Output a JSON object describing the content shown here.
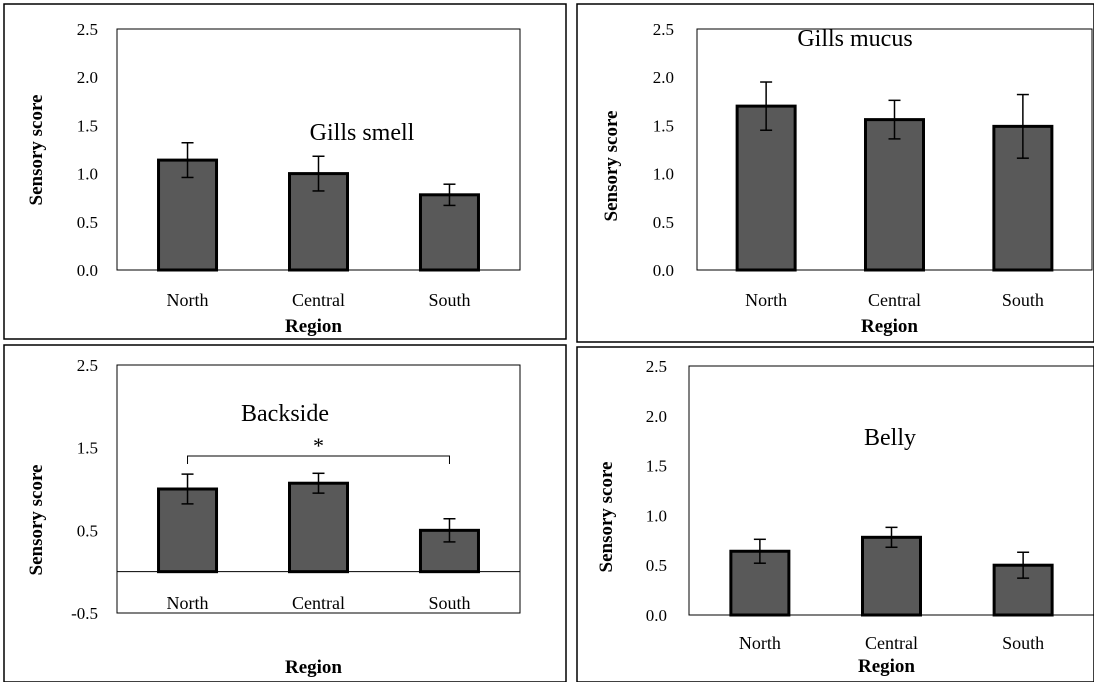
{
  "chart_data": [
    {
      "type": "bar",
      "title": "Gills smell",
      "xlabel": "Region",
      "ylabel": "Sensory score",
      "categories": [
        "North",
        "Central",
        "South"
      ],
      "values": [
        1.14,
        1.0,
        0.78
      ],
      "errors": [
        0.18,
        0.18,
        0.11
      ],
      "ylim": [
        0,
        2.5
      ],
      "yticks": [
        "0.0",
        "0.5",
        "1.0",
        "1.5",
        "2.0",
        "2.5"
      ],
      "bar_color": "#595959",
      "grid": false
    },
    {
      "type": "bar",
      "title": "Gills mucus",
      "xlabel": "Region",
      "ylabel": "Sensory score",
      "categories": [
        "North",
        "Central",
        "South"
      ],
      "values": [
        1.7,
        1.56,
        1.49
      ],
      "errors": [
        0.25,
        0.2,
        0.33
      ],
      "ylim": [
        0,
        2.5
      ],
      "yticks": [
        "0.0",
        "0.5",
        "1.0",
        "1.5",
        "2.0",
        "2.5"
      ],
      "bar_color": "#595959",
      "grid": false
    },
    {
      "type": "bar",
      "title": "Backside",
      "xlabel": "Region",
      "ylabel": "Sensory score",
      "categories": [
        "North",
        "Central",
        "South"
      ],
      "values": [
        1.0,
        1.07,
        0.5
      ],
      "errors": [
        0.18,
        0.12,
        0.14
      ],
      "ylim": [
        -0.5,
        2.5
      ],
      "yticks": [
        "-0.5",
        "0.5",
        "1.5",
        "2.5"
      ],
      "significance": {
        "from": "North",
        "to": "South",
        "label": "*"
      },
      "bar_color": "#595959",
      "grid": false
    },
    {
      "type": "bar",
      "title": "Belly",
      "xlabel": "Region",
      "ylabel": "Sensory score",
      "categories": [
        "North",
        "Central",
        "South"
      ],
      "values": [
        0.64,
        0.78,
        0.5
      ],
      "errors": [
        0.12,
        0.1,
        0.13
      ],
      "ylim": [
        0,
        2.5
      ],
      "yticks": [
        "0.0",
        "0.5",
        "1.0",
        "1.5",
        "2.0",
        "2.5"
      ],
      "bar_color": "#595959",
      "grid": false
    }
  ]
}
